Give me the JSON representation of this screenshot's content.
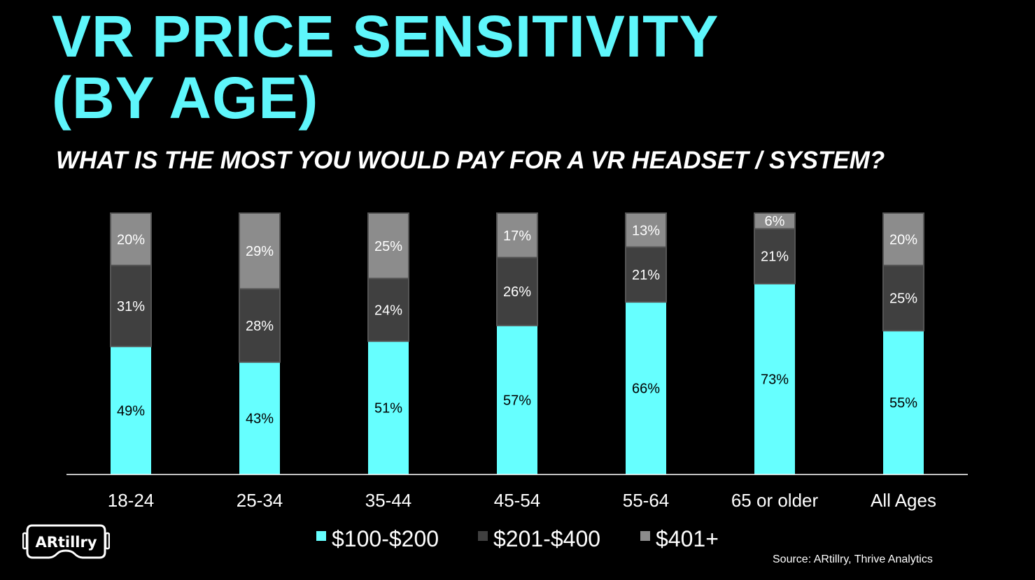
{
  "title_lines": [
    "VR PRICE SENSITIVITY",
    "(BY AGE)"
  ],
  "subtitle": "WHAT IS THE MOST YOU WOULD PAY FOR A VR HEADSET / SYSTEM?",
  "source": "Source: ARtillry, Thrive Analytics",
  "logo_text": "ARtillry",
  "chart_data": {
    "type": "bar",
    "stacked": true,
    "categories": [
      "18-24",
      "25-34",
      "35-44",
      "45-54",
      "55-64",
      "65 or older",
      "All Ages"
    ],
    "series": [
      {
        "name": "$100-$200",
        "color": "#66ffff",
        "values": [
          49,
          43,
          51,
          57,
          66,
          73,
          55
        ]
      },
      {
        "name": "$201-$400",
        "color": "#404040",
        "values": [
          31,
          28,
          24,
          26,
          21,
          21,
          25
        ]
      },
      {
        "name": "$401+",
        "color": "#8c8c8c",
        "values": [
          20,
          29,
          25,
          17,
          13,
          6,
          20
        ]
      }
    ],
    "unit": "%",
    "ylim": [
      0,
      100
    ],
    "grid": false,
    "legend": "bottom"
  }
}
